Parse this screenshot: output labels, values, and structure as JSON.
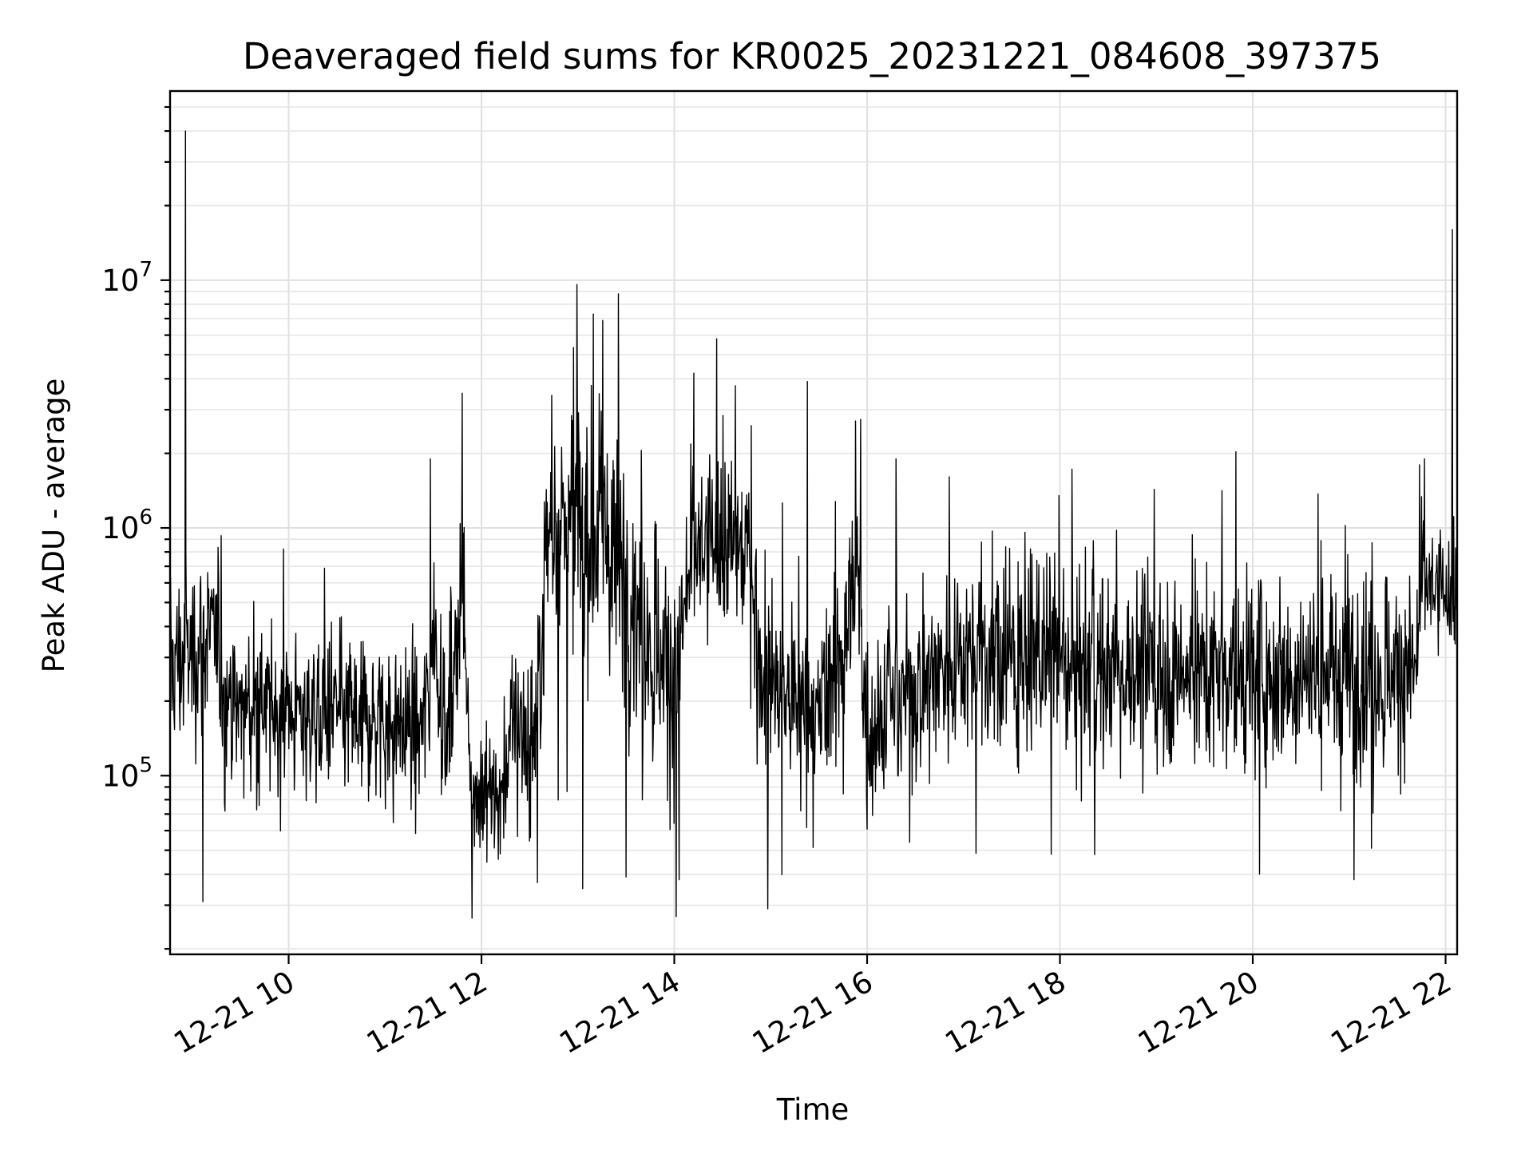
{
  "chart_data": {
    "type": "line",
    "title": "Deaveraged field sums for KR0025_20231221_084608_397375",
    "xlabel": "Time",
    "ylabel": "Peak ADU - average",
    "x_tick_labels": [
      "12-21 10",
      "12-21 12",
      "12-21 14",
      "12-21 16",
      "12-21 18",
      "12-21 20",
      "12-21 22"
    ],
    "x_tick_hours": [
      10,
      12,
      14,
      16,
      18,
      20,
      22
    ],
    "xlim_hours": [
      8.77,
      22.12
    ],
    "y_tick_labels": [
      {
        "base": "10",
        "exp": "5",
        "value": 100000
      },
      {
        "base": "10",
        "exp": "6",
        "value": 1000000
      },
      {
        "base": "10",
        "exp": "7",
        "value": 10000000
      }
    ],
    "yscale": "log",
    "ylim": [
      19000,
      58000000
    ],
    "grid": true,
    "series_color": "#000000",
    "series": [
      {
        "x_start_hour": 8.77,
        "x_end_hour": 22.12,
        "segments": [
          {
            "t": 8.77,
            "median": 280000,
            "spread": 0.35
          },
          {
            "t": 8.95,
            "median": 300000,
            "spread": 0.35
          },
          {
            "t": 9.2,
            "median": 380000,
            "spread": 0.3
          },
          {
            "t": 9.35,
            "median": 190000,
            "spread": 0.3
          },
          {
            "t": 10.0,
            "median": 180000,
            "spread": 0.3
          },
          {
            "t": 11.0,
            "median": 170000,
            "spread": 0.3
          },
          {
            "t": 11.4,
            "median": 150000,
            "spread": 0.3
          },
          {
            "t": 11.5,
            "median": 400000,
            "spread": 0.35
          },
          {
            "t": 11.65,
            "median": 140000,
            "spread": 0.3
          },
          {
            "t": 11.8,
            "median": 600000,
            "spread": 0.4
          },
          {
            "t": 11.9,
            "median": 90000,
            "spread": 0.2
          },
          {
            "t": 12.2,
            "median": 85000,
            "spread": 0.25
          },
          {
            "t": 12.35,
            "median": 180000,
            "spread": 0.3
          },
          {
            "t": 12.55,
            "median": 130000,
            "spread": 0.3
          },
          {
            "t": 12.7,
            "median": 1100000,
            "spread": 0.45
          },
          {
            "t": 13.2,
            "median": 1000000,
            "spread": 0.5
          },
          {
            "t": 13.6,
            "median": 500000,
            "spread": 0.45
          },
          {
            "t": 14.0,
            "median": 250000,
            "spread": 0.45
          },
          {
            "t": 14.2,
            "median": 800000,
            "spread": 0.35
          },
          {
            "t": 14.8,
            "median": 850000,
            "spread": 0.3
          },
          {
            "t": 14.9,
            "median": 250000,
            "spread": 0.35
          },
          {
            "t": 15.5,
            "median": 160000,
            "spread": 0.35
          },
          {
            "t": 15.9,
            "median": 600000,
            "spread": 0.45
          },
          {
            "t": 16.0,
            "median": 160000,
            "spread": 0.35
          },
          {
            "t": 16.5,
            "median": 230000,
            "spread": 0.35
          },
          {
            "t": 17.0,
            "median": 320000,
            "spread": 0.35
          },
          {
            "t": 19.0,
            "median": 260000,
            "spread": 0.35
          },
          {
            "t": 21.7,
            "median": 270000,
            "spread": 0.35
          },
          {
            "t": 21.75,
            "median": 600000,
            "spread": 0.25
          },
          {
            "t": 22.12,
            "median": 500000,
            "spread": 0.2
          }
        ],
        "peaks": [
          {
            "t": 8.93,
            "y": 40000000
          },
          {
            "t": 9.3,
            "y": 930000
          },
          {
            "t": 11.47,
            "y": 1900000
          },
          {
            "t": 11.8,
            "y": 3500000
          },
          {
            "t": 12.99,
            "y": 9600000
          },
          {
            "t": 13.16,
            "y": 7300000
          },
          {
            "t": 13.42,
            "y": 8800000
          },
          {
            "t": 14.44,
            "y": 5800000
          },
          {
            "t": 15.38,
            "y": 3900000
          },
          {
            "t": 15.88,
            "y": 2700000
          },
          {
            "t": 16.3,
            "y": 1900000
          },
          {
            "t": 17.99,
            "y": 1350000
          },
          {
            "t": 21.73,
            "y": 1800000
          },
          {
            "t": 22.07,
            "y": 16000000
          }
        ],
        "troughs": [
          {
            "t": 9.11,
            "y": 31000
          },
          {
            "t": 13.05,
            "y": 35000
          },
          {
            "t": 14.02,
            "y": 27000
          },
          {
            "t": 14.97,
            "y": 29000
          },
          {
            "t": 12.58,
            "y": 37000
          },
          {
            "t": 13.5,
            "y": 39000
          },
          {
            "t": 14.05,
            "y": 38000
          },
          {
            "t": 20.07,
            "y": 40000
          },
          {
            "t": 21.05,
            "y": 38000
          },
          {
            "t": 18.36,
            "y": 48000
          }
        ]
      }
    ]
  }
}
